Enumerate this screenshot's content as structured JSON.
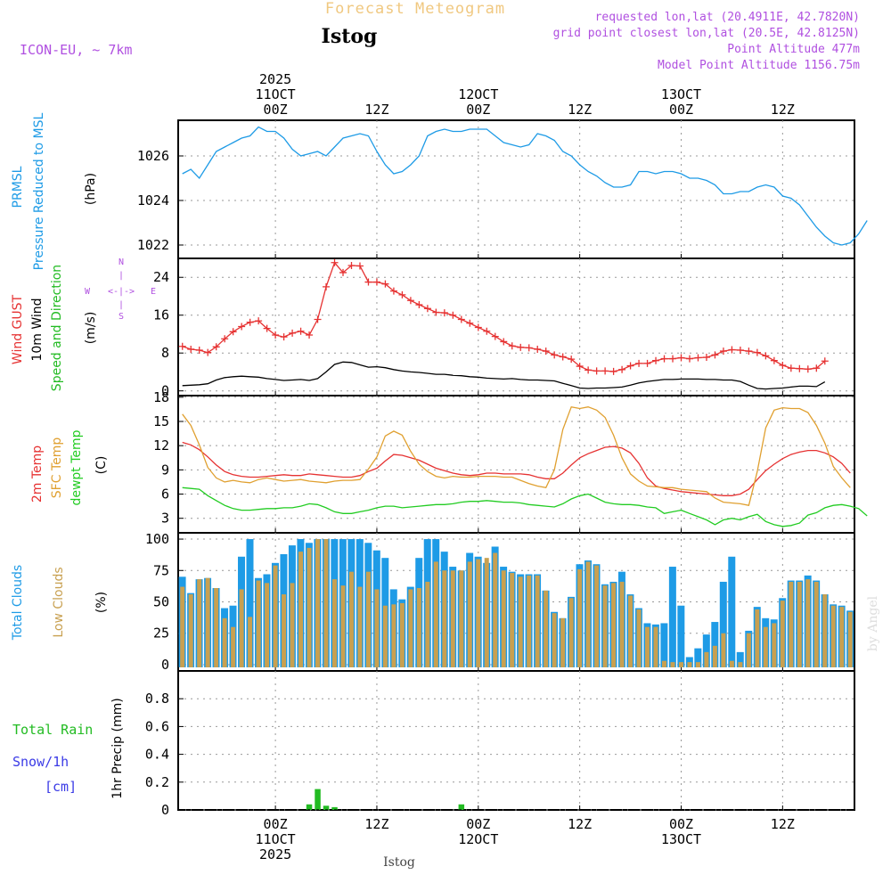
{
  "header": {
    "forecast_title": "Forecast Meteogram",
    "location": "Istog",
    "model": "ICON-EU, ~ 7km",
    "requested": "requested lon,lat (20.4911E, 42.7820N)",
    "grid_point": "grid point closest lon,lat (20.5E, 42.8125N)",
    "point_altitude": "Point Altitude 477m",
    "model_altitude": "Model Point Altitude 1156.75m",
    "footer_location": "Istog",
    "credit": "by Angel"
  },
  "colors": {
    "pressure": "#1e9be6",
    "gust": "#e63232",
    "wind": "#000000",
    "direction_label": "#22bb22",
    "temp2m": "#e63232",
    "sfc": "#e0a030",
    "dewpt": "#22cc22",
    "total_clouds": "#1e9be6",
    "low_clouds": "#c8a050",
    "rain": "#22bb22",
    "snow": "#3a3ae6",
    "purple": "#b050e0",
    "title_orange": "#f0c880",
    "grid": "#999999"
  },
  "time_axis": {
    "top_labels": [
      {
        "hour": 12,
        "lines": [
          "2025",
          "11OCT",
          "00Z"
        ]
      },
      {
        "hour": 24,
        "lines": [
          "12Z"
        ]
      },
      {
        "hour": 36,
        "lines": [
          "12OCT",
          "00Z"
        ]
      },
      {
        "hour": 48,
        "lines": [
          "12Z"
        ]
      },
      {
        "hour": 60,
        "lines": [
          "13OCT",
          "00Z"
        ]
      },
      {
        "hour": 72,
        "lines": [
          "12Z"
        ]
      }
    ],
    "bottom_labels": [
      {
        "hour": 12,
        "lines": [
          "00Z",
          "11OCT",
          "2025"
        ]
      },
      {
        "hour": 24,
        "lines": [
          "12Z"
        ]
      },
      {
        "hour": 36,
        "lines": [
          "00Z",
          "12OCT"
        ]
      },
      {
        "hour": 48,
        "lines": [
          "12Z"
        ]
      },
      {
        "hour": 60,
        "lines": [
          "00Z",
          "13OCT"
        ]
      },
      {
        "hour": 72,
        "lines": [
          "12Z"
        ]
      }
    ]
  },
  "chart_data": [
    {
      "type": "line",
      "panel": "pressure",
      "title": "PRMSL Pressure Reduced to MSL",
      "ylabel_lines": [
        "PRMSL",
        "Pressure Reduced to MSL"
      ],
      "units": "(hPa)",
      "ylim": [
        1021.4,
        1027.6
      ],
      "yticks": [
        1022,
        1024,
        1026
      ],
      "x_start": 1,
      "x_step": 1,
      "series": [
        {
          "name": "PRMSL",
          "color": "#1e9be6",
          "values": [
            1025.2,
            1025.4,
            1025.0,
            1025.6,
            1026.2,
            1026.4,
            1026.6,
            1026.8,
            1026.9,
            1027.3,
            1027.1,
            1027.1,
            1026.8,
            1026.3,
            1026.0,
            1026.1,
            1026.2,
            1026.0,
            1026.4,
            1026.8,
            1026.9,
            1027.0,
            1026.9,
            1026.2,
            1025.6,
            1025.2,
            1025.3,
            1025.6,
            1026.0,
            1026.9,
            1027.1,
            1027.2,
            1027.1,
            1027.1,
            1027.2,
            1027.2,
            1027.2,
            1026.9,
            1026.6,
            1026.5,
            1026.4,
            1026.5,
            1027.0,
            1026.9,
            1026.7,
            1026.2,
            1026.0,
            1025.6,
            1025.3,
            1025.1,
            1024.8,
            1024.6,
            1024.6,
            1024.7,
            1025.3,
            1025.3,
            1025.2,
            1025.3,
            1025.3,
            1025.2,
            1025.0,
            1025.0,
            1024.9,
            1024.7,
            1024.3,
            1024.3,
            1024.4,
            1024.4,
            1024.6,
            1024.7,
            1024.6,
            1024.2,
            1024.1,
            1023.8,
            1023.3,
            1022.8,
            1022.4,
            1022.1,
            1022.0,
            1022.1,
            1022.5,
            1023.1
          ]
        }
      ]
    },
    {
      "type": "line",
      "panel": "wind",
      "title": "Wind GUST / 10m Wind Speed and Direction",
      "ylabel_lines": [
        "Wind GUST",
        "10m Wind",
        "Speed and Direction"
      ],
      "units": "(m/s)",
      "compass": {
        "n": "N",
        "s": "S",
        "w": "W",
        "e": "E"
      },
      "ylim": [
        -1,
        28
      ],
      "yticks": [
        0,
        8,
        16,
        24
      ],
      "x_start": 1,
      "x_step": 1,
      "series": [
        {
          "name": "Wind GUST",
          "color": "#e63232",
          "marker": "+",
          "values": [
            9.4,
            8.8,
            8.6,
            8.1,
            9.3,
            11.0,
            12.5,
            13.6,
            14.5,
            14.8,
            13.2,
            11.8,
            11.4,
            12.2,
            12.6,
            11.8,
            15.1,
            22.0,
            27.1,
            25.0,
            26.5,
            26.4,
            23.0,
            23.0,
            22.6,
            21.1,
            20.3,
            19.1,
            18.2,
            17.4,
            16.6,
            16.5,
            16.0,
            15.1,
            14.3,
            13.4,
            12.6,
            11.5,
            10.4,
            9.5,
            9.2,
            9.1,
            8.8,
            8.4,
            7.6,
            7.2,
            6.7,
            5.2,
            4.4,
            4.2,
            4.2,
            4.1,
            4.5,
            5.3,
            5.8,
            5.8,
            6.4,
            6.8,
            6.8,
            7.0,
            6.8,
            7.0,
            7.1,
            7.6,
            8.4,
            8.7,
            8.6,
            8.4,
            8.1,
            7.4,
            6.4,
            5.4,
            4.8,
            4.7,
            4.6,
            4.8,
            6.3
          ]
        },
        {
          "name": "10m Wind",
          "color": "#000000",
          "values": [
            1.1,
            1.2,
            1.3,
            1.5,
            2.3,
            2.8,
            3.0,
            3.1,
            3.0,
            2.9,
            2.6,
            2.4,
            2.2,
            2.3,
            2.4,
            2.2,
            2.6,
            4.0,
            5.6,
            6.1,
            6.0,
            5.5,
            5.0,
            5.1,
            4.9,
            4.5,
            4.2,
            4.0,
            3.9,
            3.7,
            3.5,
            3.5,
            3.3,
            3.2,
            3.0,
            2.9,
            2.7,
            2.6,
            2.5,
            2.6,
            2.4,
            2.3,
            2.3,
            2.2,
            2.1,
            1.6,
            1.1,
            0.6,
            0.5,
            0.6,
            0.6,
            0.7,
            0.8,
            1.2,
            1.7,
            2.0,
            2.2,
            2.4,
            2.4,
            2.5,
            2.5,
            2.5,
            2.4,
            2.4,
            2.3,
            2.3,
            2.0,
            1.2,
            0.5,
            0.4,
            0.5,
            0.6,
            0.8,
            1.0,
            1.0,
            0.9,
            1.9
          ]
        },
        {
          "name": "Direction arrows",
          "level": 13,
          "arrow_colors": [
            "#3a3ae6",
            "#3a3ae6",
            "#3a3ae6",
            "#3a3ae6",
            "#1e9be6",
            "#1e9be6",
            "#1e9be6",
            "#1e9be6",
            "#1e9be6",
            "#1e9be6",
            "#1e9be6",
            "#1e9be6",
            "#1e9be6",
            "#1e9be6",
            "#1e9be6",
            "#1e9be6",
            "#1e9be6",
            "#e8e040",
            "#e8c030",
            "#e0a030",
            "#e0a030",
            "#e0a030",
            "#e0a030",
            "#d8c030",
            "#c8d830",
            "#a8e030",
            "#70e030",
            "#30d040",
            "#30d040",
            "#22cc22",
            "#22cc22",
            "#22cc22",
            "#20c8b0",
            "#20c8d0",
            "#20c8d0",
            "#20c8d0",
            "#20c8d0",
            "#1e9be6",
            "#1e9be6",
            "#1e9be6",
            "#1e9be6",
            "#1e9be6",
            "#1e9be6",
            "#3a3ae6",
            "#8a2be2",
            "#8a2be2",
            "#8a2be2",
            "#8a2be2",
            "#8a2be2",
            "#8a2be2",
            "#8a2be2",
            "#8a2be2",
            "#1e9be6",
            "#1e9be6",
            "#1e9be6",
            "#1e9be6",
            "#1e9be6",
            "#1e9be6",
            "#20c8d0",
            "#20c8d0",
            "#20c8d0",
            "#20c8d0",
            "#20c8d0",
            "#20c8d0",
            "#20c8d0",
            "#1e9be6",
            "#1e9be6",
            "#1e9be6",
            "#8a2be2",
            "#8a2be2",
            "#8a2be2",
            "#8a2be2",
            "#8a2be2",
            "#8a2be2",
            "#8a2be2",
            "#8a2be2",
            "#1e9be6"
          ]
        }
      ]
    },
    {
      "type": "line",
      "panel": "temperature",
      "title": "2m Temp / SFC Temp / dewpt Temp",
      "ylabel_lines": [
        "2m Temp",
        "SFC Temp",
        "dewpt Temp"
      ],
      "units": "(C)",
      "ylim": [
        1.2,
        18.2
      ],
      "yticks": [
        3,
        6,
        9,
        12,
        15,
        18
      ],
      "x_start": 1,
      "x_step": 1,
      "series": [
        {
          "name": "2m Temp",
          "color": "#e63232",
          "values": [
            12.4,
            12.1,
            11.5,
            10.6,
            9.6,
            8.8,
            8.4,
            8.2,
            8.1,
            8.1,
            8.2,
            8.3,
            8.4,
            8.3,
            8.3,
            8.5,
            8.4,
            8.3,
            8.2,
            8.1,
            8.1,
            8.3,
            8.8,
            9.2,
            10.1,
            10.9,
            10.8,
            10.5,
            10.2,
            9.7,
            9.2,
            8.9,
            8.6,
            8.4,
            8.3,
            8.4,
            8.6,
            8.6,
            8.5,
            8.5,
            8.5,
            8.4,
            8.1,
            7.9,
            7.9,
            8.6,
            9.6,
            10.5,
            11.0,
            11.4,
            11.8,
            11.9,
            11.7,
            11.1,
            9.8,
            8.0,
            7.0,
            6.7,
            6.5,
            6.3,
            6.2,
            6.1,
            6.0,
            5.9,
            5.8,
            5.8,
            6.0,
            6.6,
            7.8,
            8.9,
            9.7,
            10.4,
            10.9,
            11.2,
            11.4,
            11.4,
            11.1,
            10.6,
            9.8,
            8.6
          ]
        },
        {
          "name": "SFC Temp",
          "color": "#e0a030",
          "values": [
            15.9,
            14.5,
            12.1,
            9.3,
            8.0,
            7.5,
            7.7,
            7.5,
            7.4,
            7.8,
            8.0,
            7.8,
            7.6,
            7.7,
            7.8,
            7.6,
            7.5,
            7.4,
            7.6,
            7.7,
            7.7,
            7.8,
            9.1,
            10.6,
            13.2,
            13.8,
            13.3,
            11.3,
            9.7,
            8.8,
            8.2,
            8.0,
            8.2,
            8.1,
            8.1,
            8.2,
            8.2,
            8.2,
            8.1,
            8.1,
            7.7,
            7.3,
            7.0,
            6.8,
            9.0,
            14.0,
            16.8,
            16.6,
            16.8,
            16.4,
            15.5,
            13.3,
            10.5,
            8.5,
            7.6,
            7.0,
            6.9,
            6.8,
            6.8,
            6.6,
            6.5,
            6.4,
            6.3,
            5.5,
            5.0,
            4.9,
            4.8,
            4.6,
            8.8,
            14.2,
            16.4,
            16.7,
            16.6,
            16.6,
            16.1,
            14.5,
            12.3,
            9.4,
            8.0,
            6.8
          ]
        },
        {
          "name": "dewpt Temp",
          "color": "#22cc22",
          "values": [
            6.8,
            6.7,
            6.6,
            5.8,
            5.2,
            4.6,
            4.2,
            4.0,
            4.0,
            4.1,
            4.2,
            4.2,
            4.3,
            4.3,
            4.5,
            4.8,
            4.7,
            4.3,
            3.8,
            3.6,
            3.6,
            3.8,
            4.0,
            4.3,
            4.5,
            4.5,
            4.3,
            4.4,
            4.5,
            4.6,
            4.7,
            4.7,
            4.8,
            5.0,
            5.1,
            5.1,
            5.2,
            5.1,
            5.0,
            5.0,
            4.9,
            4.7,
            4.6,
            4.5,
            4.4,
            4.8,
            5.4,
            5.8,
            6.0,
            5.5,
            5.0,
            4.8,
            4.7,
            4.7,
            4.6,
            4.4,
            4.3,
            3.6,
            3.8,
            4.0,
            3.6,
            3.2,
            2.8,
            2.2,
            2.8,
            3.0,
            2.8,
            3.2,
            3.5,
            2.6,
            2.2,
            2.0,
            2.1,
            2.4,
            3.4,
            3.7,
            4.3,
            4.6,
            4.7,
            4.5,
            4.2,
            3.3
          ]
        }
      ]
    },
    {
      "type": "bar",
      "panel": "clouds",
      "title": "Total Clouds / Low Clouds",
      "ylabel_lines": [
        "Total Clouds",
        "Low Clouds"
      ],
      "units": "(%)",
      "ylim": [
        -5,
        105
      ],
      "yticks": [
        0,
        25,
        50,
        75,
        100
      ],
      "x_start": 1,
      "x_step": 1,
      "series": [
        {
          "name": "Total Clouds",
          "color": "#1e9be6",
          "values": [
            70,
            57,
            68,
            69,
            61,
            45,
            47,
            86,
            100,
            69,
            72,
            81,
            88,
            95,
            100,
            97,
            100,
            100,
            100,
            100,
            100,
            100,
            97,
            91,
            85,
            60,
            52,
            62,
            85,
            100,
            100,
            90,
            78,
            75,
            89,
            86,
            81,
            94,
            78,
            74,
            72,
            72,
            72,
            59,
            42,
            37,
            54,
            80,
            83,
            80,
            64,
            66,
            74,
            56,
            45,
            33,
            32,
            33,
            78,
            47,
            6,
            13,
            24,
            34,
            66,
            86,
            10,
            27,
            46,
            37,
            36,
            53,
            67,
            67,
            71,
            67,
            56,
            48,
            47,
            43
          ]
        },
        {
          "name": "Low Clouds",
          "color": "#c8a050",
          "values": [
            62,
            56,
            68,
            69,
            61,
            37,
            30,
            60,
            38,
            67,
            65,
            79,
            56,
            65,
            90,
            93,
            100,
            100,
            68,
            63,
            74,
            62,
            74,
            60,
            47,
            48,
            49,
            60,
            61,
            66,
            82,
            75,
            75,
            75,
            82,
            84,
            85,
            89,
            75,
            73,
            70,
            71,
            71,
            59,
            41,
            37,
            53,
            76,
            82,
            79,
            63,
            65,
            66,
            55,
            44,
            30,
            30,
            3,
            2,
            2,
            2,
            2,
            10,
            15,
            25,
            3,
            2,
            25,
            44,
            30,
            33,
            51,
            66,
            66,
            68,
            66,
            56,
            47,
            46,
            42
          ]
        }
      ]
    },
    {
      "type": "bar",
      "panel": "precip",
      "title": "1hr Precip (mm)",
      "ylabel_lines": [
        "1hr Precip (mm)"
      ],
      "legend_lines": [
        "Total  Rain",
        "Snow/1h",
        "[cm]"
      ],
      "units": "(mm)",
      "ylim": [
        0,
        1.0
      ],
      "yticks": [
        0,
        0.2,
        0.4,
        0.6,
        0.8
      ],
      "x_start": 1,
      "x_step": 1,
      "series": [
        {
          "name": "Total Rain",
          "color": "#22bb22",
          "values": [
            0,
            0,
            0,
            0,
            0,
            0,
            0,
            0,
            0,
            0,
            0,
            0,
            0,
            0,
            0,
            0.04,
            0.15,
            0.03,
            0.02,
            0.0,
            0,
            0,
            0,
            0,
            0,
            0,
            0,
            0,
            0,
            0,
            0,
            0,
            0,
            0.04,
            0,
            0,
            0,
            0,
            0,
            0,
            0,
            0,
            0,
            0,
            0,
            0,
            0,
            0,
            0,
            0,
            0,
            0,
            0,
            0,
            0,
            0,
            0,
            0,
            0,
            0,
            0,
            0,
            0,
            0,
            0,
            0,
            0,
            0,
            0,
            0,
            0,
            0,
            0,
            0,
            0,
            0,
            0,
            0,
            0,
            0
          ]
        },
        {
          "name": "Snow/1h",
          "color": "#3a3ae6",
          "values": []
        }
      ]
    }
  ]
}
